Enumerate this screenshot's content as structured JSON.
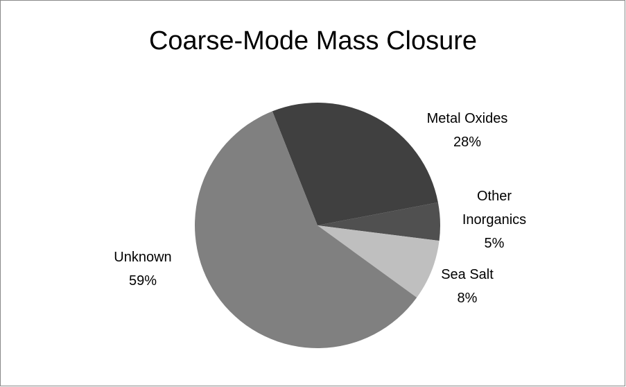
{
  "chart_data": {
    "type": "pie",
    "title": "Coarse-Mode Mass Closure",
    "categories": [
      "Metal Oxides",
      "Other Inorganics",
      "Sea Salt",
      "Unknown"
    ],
    "values": [
      28,
      5,
      8,
      59
    ],
    "value_labels": [
      "28%",
      "5%",
      "8%",
      "59%"
    ],
    "colors": [
      "#404040",
      "#505050",
      "#bfbfbf",
      "#808080"
    ]
  }
}
